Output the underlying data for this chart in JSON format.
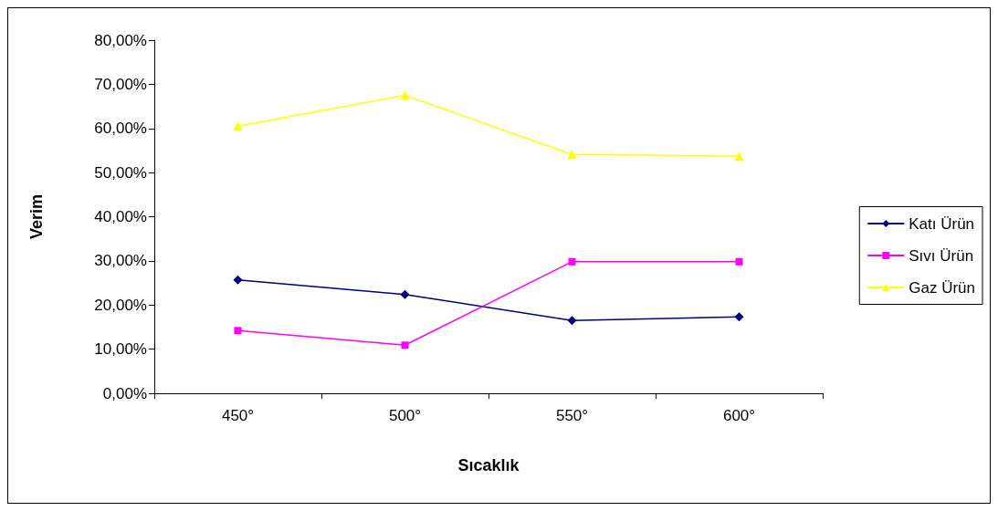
{
  "chart_data": {
    "type": "line",
    "xlabel": "Sıcaklık",
    "ylabel": "Verim",
    "categories": [
      "450°",
      "500°",
      "550°",
      "600°"
    ],
    "series": [
      {
        "name": "Katı Ürün",
        "color": "#000080",
        "marker": "diamond",
        "values": [
          25.7,
          22.4,
          16.5,
          17.3
        ]
      },
      {
        "name": "Sıvı Ürün",
        "color": "#ff00ff",
        "marker": "square",
        "values": [
          14.2,
          10.9,
          29.8,
          29.8
        ]
      },
      {
        "name": "Gaz Ürün",
        "color": "#ffff00",
        "marker": "triangle",
        "values": [
          60.5,
          67.5,
          54.1,
          53.7
        ]
      }
    ],
    "ylim": [
      0,
      80
    ],
    "yticks": [
      {
        "value": 0,
        "label": "0,00%"
      },
      {
        "value": 10,
        "label": "10,00%"
      },
      {
        "value": 20,
        "label": "20,00%"
      },
      {
        "value": 30,
        "label": "30,00%"
      },
      {
        "value": 40,
        "label": "40,00%"
      },
      {
        "value": 50,
        "label": "50,00%"
      },
      {
        "value": 60,
        "label": "60,00%"
      },
      {
        "value": 70,
        "label": "70,00%"
      },
      {
        "value": 80,
        "label": "80,00%"
      }
    ],
    "grid": false,
    "legend": "right",
    "line_style": "solid"
  }
}
